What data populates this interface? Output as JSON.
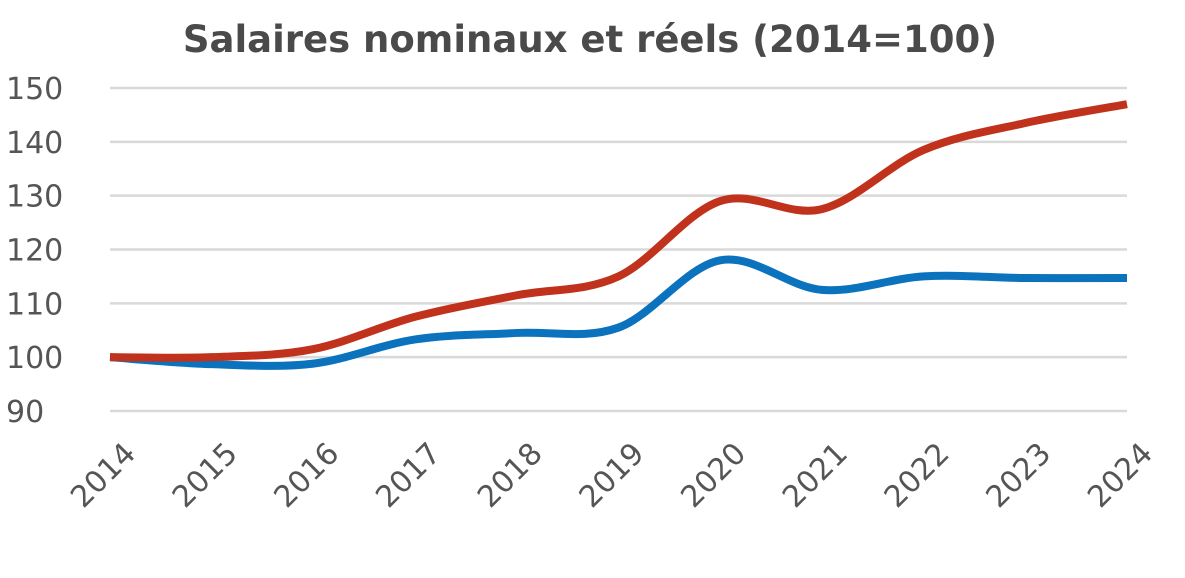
{
  "chart_data": {
    "type": "line",
    "title": "Salaires nominaux et réels (2014=100)",
    "xlabel": "",
    "ylabel": "",
    "x": [
      "2014",
      "2015",
      "2016",
      "2017",
      "2018",
      "2019",
      "2020",
      "2021",
      "2022",
      "2023",
      "2024"
    ],
    "ylim": [
      90,
      150
    ],
    "yticks": [
      90,
      100,
      110,
      120,
      130,
      140,
      150
    ],
    "grid": true,
    "legend": "none",
    "series": [
      {
        "name": "Salaires nominaux",
        "color": "#c1321c",
        "values": [
          100,
          100,
          101.5,
          107.5,
          111.5,
          115,
          129,
          127.5,
          138.5,
          143.5,
          147
        ]
      },
      {
        "name": "Salaires réels",
        "color": "#0b72bd",
        "values": [
          100,
          98.7,
          98.8,
          103.3,
          104.5,
          105.5,
          118,
          112.5,
          115,
          114.7,
          114.7
        ]
      }
    ]
  }
}
